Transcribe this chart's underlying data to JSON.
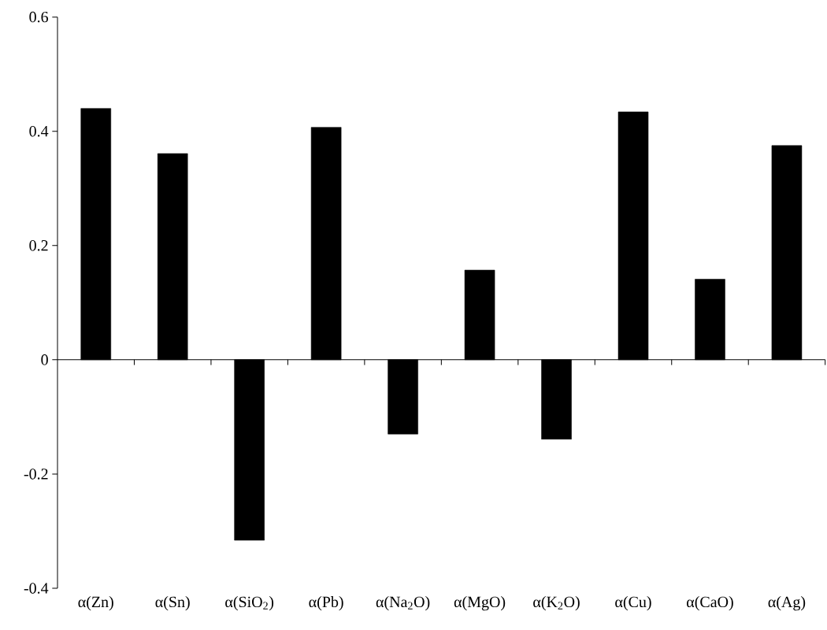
{
  "chart_data": {
    "type": "bar",
    "categories": [
      "α(Zn)",
      "α(Sn)",
      "α(SiO$_{2}$)",
      "α(Pb)",
      "α(Na$_{2}$O)",
      "α(MgO)",
      "α(K$_{2}$O)",
      "α(Cu)",
      "α(CaO)",
      "α(Ag)"
    ],
    "values": [
      0.44,
      0.361,
      -0.316,
      0.407,
      -0.13,
      0.157,
      -0.139,
      0.434,
      0.141,
      0.375
    ],
    "color": "#000000",
    "ylim": [
      -0.4,
      0.6
    ],
    "yticks": [
      -0.4,
      -0.2,
      0,
      0.2,
      0.4,
      0.6
    ]
  }
}
